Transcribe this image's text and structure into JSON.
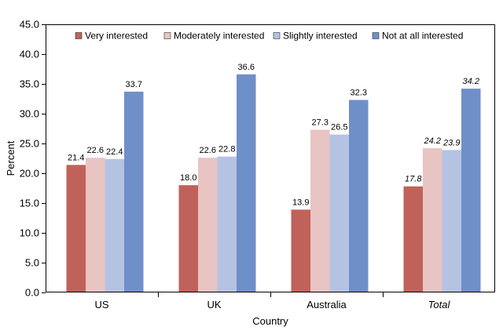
{
  "chart_data": {
    "type": "bar",
    "title": "",
    "xlabel": "Country",
    "ylabel": "Percent",
    "ylim": [
      0,
      45
    ],
    "yticks": [
      "0.0",
      "5.0",
      "10.0",
      "15.0",
      "20.0",
      "25.0",
      "30.0",
      "35.0",
      "40.0",
      "45.0"
    ],
    "categories": [
      "US",
      "UK",
      "Australia",
      "Total"
    ],
    "italic_categories": [
      "Total"
    ],
    "legend_position": "top",
    "grid": false,
    "series": [
      {
        "name": "Very interested",
        "color": "#c0625a",
        "values": [
          21.4,
          18.0,
          13.9,
          17.8
        ],
        "labels": [
          "21.4",
          "18.0",
          "13.9",
          "17.8"
        ]
      },
      {
        "name": "Moderately interested",
        "color": "#e8c4c3",
        "values": [
          22.6,
          22.6,
          27.3,
          24.2
        ],
        "labels": [
          "22.6",
          "22.6",
          "27.3",
          "24.2"
        ]
      },
      {
        "name": "Slightly interested",
        "color": "#b5c3e3",
        "values": [
          22.4,
          22.8,
          26.5,
          23.9
        ],
        "labels": [
          "22.4",
          "22.8",
          "26.5",
          "23.9"
        ]
      },
      {
        "name": "Not at all interested",
        "color": "#6f8fc9",
        "values": [
          33.7,
          36.6,
          32.3,
          34.2
        ],
        "labels": [
          "33.7",
          "36.6",
          "32.3",
          "34.2"
        ]
      }
    ]
  }
}
